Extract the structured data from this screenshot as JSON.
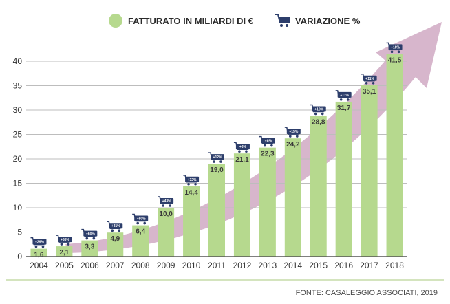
{
  "legend": {
    "revenue_label": "FATTURATO IN MILIARDI DI €",
    "variation_label": "VARIAZIONE %"
  },
  "source": "FONTE: CASALEGGIO ASSOCIATI, 2019",
  "colors": {
    "bar": "#b6d98e",
    "cart": "#2d3e6b",
    "arrow": "#d7b6cc",
    "grid": "#bdbdbd",
    "axis": "#555555",
    "rule": "#c6dca8"
  },
  "chart_data": {
    "type": "bar",
    "title": "",
    "xlabel": "",
    "ylabel": "",
    "ylim": [
      0,
      40
    ],
    "yticks": [
      0,
      5,
      10,
      15,
      20,
      25,
      30,
      35,
      40
    ],
    "grid": true,
    "legend_position": "top-center",
    "categories": [
      "2004",
      "2005",
      "2006",
      "2007",
      "2008",
      "2009",
      "2010",
      "2011",
      "2012",
      "2013",
      "2014",
      "2015",
      "2016",
      "2017",
      "2018"
    ],
    "series": [
      {
        "name": "FATTURATO IN MILIARDI DI €",
        "values": [
          1.6,
          2.1,
          3.3,
          4.9,
          6.4,
          10.0,
          14.4,
          19.0,
          21.1,
          22.3,
          24.2,
          28.8,
          31.7,
          35.1,
          41.5
        ],
        "labels": [
          "1,6",
          "2,1",
          "3,3",
          "4,9",
          "6,4",
          "10,0",
          "14,4",
          "19,0",
          "21,1",
          "22,3",
          "24,2",
          "28,8",
          "31,7",
          "35,1",
          "41,5"
        ]
      },
      {
        "name": "VARIAZIONE %",
        "labels": [
          "+29%",
          "+55%",
          "+60%",
          "+31%",
          "+50%",
          "+43%",
          "+32%",
          "+12%",
          "+6%",
          "+8%",
          "+15%",
          "+10%",
          "+11%",
          "+11%",
          "+18%"
        ]
      }
    ]
  }
}
